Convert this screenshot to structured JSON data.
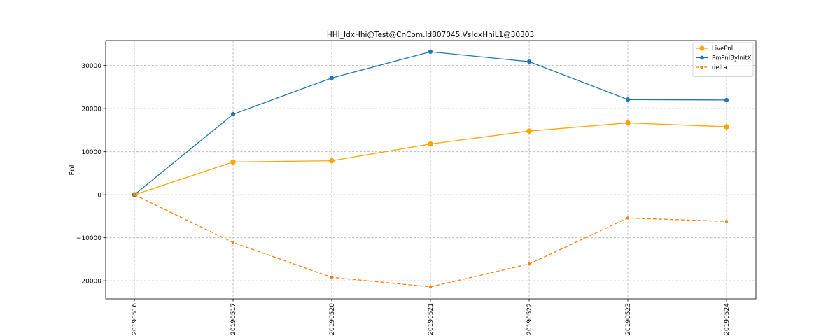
{
  "chart_data": {
    "type": "line",
    "title": "HHI_IdxHhi@Test@CnCom.Id807045.VsIdxHhiL1@30303",
    "xlabel": "",
    "ylabel": "Pnl",
    "categories": [
      "20190516",
      "20190517",
      "20190520",
      "20190521",
      "20190522",
      "20190523",
      "20190524"
    ],
    "ylim": [
      -24200,
      35800
    ],
    "yticks": [
      -20000,
      -10000,
      0,
      10000,
      20000,
      30000
    ],
    "ytick_labels": [
      "−20000",
      "−10000",
      "0",
      "10000",
      "20000",
      "30000"
    ],
    "grid": true,
    "legend_position": "top-right",
    "series": [
      {
        "name": "LivePnl",
        "values": [
          0,
          7600,
          7900,
          11800,
          14800,
          16700,
          15800
        ],
        "color": "#ffa500",
        "style": "solid",
        "marker": "large-circle"
      },
      {
        "name": "PmPnlByInitX",
        "values": [
          0,
          18700,
          27100,
          33200,
          30900,
          22100,
          22000
        ],
        "color": "#1f77b4",
        "style": "solid",
        "marker": "circle"
      },
      {
        "name": "delta",
        "values": [
          0,
          -11100,
          -19200,
          -21400,
          -16100,
          -5400,
          -6200
        ],
        "color": "#ff7f0e",
        "style": "dashed",
        "marker": "small-circle"
      }
    ]
  }
}
